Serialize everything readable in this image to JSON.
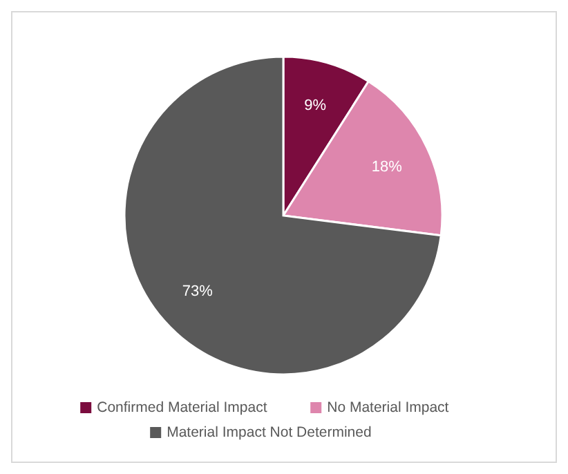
{
  "chart_data": {
    "type": "pie",
    "categories": [
      "Confirmed Material Impact",
      "No Material Impact",
      "Material Impact Not Determined"
    ],
    "values": [
      9,
      18,
      73
    ],
    "colors": [
      "#7b0c3e",
      "#de86ad",
      "#595959"
    ],
    "value_labels": [
      "9%",
      "18%",
      "73%"
    ],
    "legend": "bottom"
  }
}
